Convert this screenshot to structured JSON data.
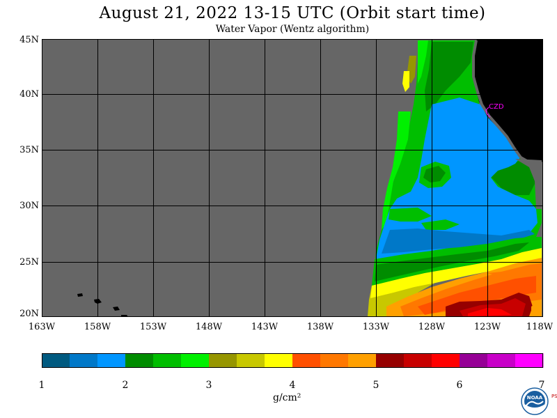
{
  "header": {
    "title": "August 21, 2022  13-15 UTC  (Orbit start time)",
    "subtitle": "Water Vapor (Wentz algorithm)"
  },
  "map": {
    "lat_labels": [
      "45N",
      "40N",
      "35N",
      "30N",
      "25N",
      "20N"
    ],
    "lon_labels": [
      "163W",
      "158W",
      "153W",
      "148W",
      "143W",
      "138W",
      "133W",
      "128W",
      "123W",
      "118W"
    ],
    "lat_range": [
      20,
      45
    ],
    "lon_range": [
      -163,
      -118
    ],
    "station_label": "CZD",
    "no_data_color": "#666666",
    "land_color": "#000000"
  },
  "colorbar": {
    "tick_labels": [
      "1",
      "2",
      "3",
      "4",
      "5",
      "6",
      "7"
    ],
    "units": "g/cm²",
    "colors": [
      "#005a80",
      "#0078c8",
      "#0096ff",
      "#008c00",
      "#00be00",
      "#00f000",
      "#969600",
      "#c8c800",
      "#ffff00",
      "#ff5000",
      "#ff7800",
      "#ffa000",
      "#960000",
      "#c80000",
      "#ff0000",
      "#960096",
      "#c800c8",
      "#ff00ff"
    ]
  },
  "logo": {
    "text": "NOAA",
    "side_text": "PSL"
  }
}
